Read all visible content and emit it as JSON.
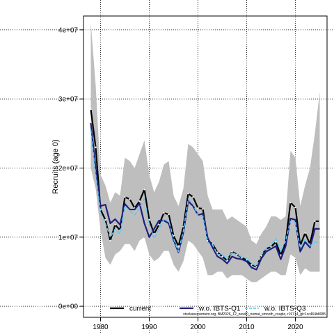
{
  "chart_data": {
    "type": "line",
    "title": "",
    "xlabel": "",
    "ylabel": "Recruits (age 0)",
    "xlim": [
      1976.5,
      2026.5
    ],
    "ylim": [
      -1600000,
      42000000
    ],
    "xticks": [
      1980,
      1990,
      2000,
      2010,
      2020
    ],
    "yticks": [
      0,
      10000000,
      20000000,
      30000000,
      40000000
    ],
    "ytick_labels": [
      "0e+00",
      "1e+07",
      "2e+07",
      "3e+07",
      "4e+07"
    ],
    "grid": true,
    "legend_position": "bottom",
    "x": [
      1978,
      1979,
      1980,
      1981,
      1982,
      1983,
      1984,
      1985,
      1986,
      1987,
      1988,
      1989,
      1990,
      1991,
      1992,
      1993,
      1994,
      1995,
      1996,
      1997,
      1998,
      1999,
      2000,
      2001,
      2002,
      2003,
      2004,
      2005,
      2006,
      2007,
      2008,
      2009,
      2010,
      2011,
      2012,
      2013,
      2014,
      2015,
      2016,
      2017,
      2018,
      2019,
      2020,
      2021,
      2022,
      2023,
      2024,
      2025
    ],
    "confidence_band": {
      "lower": [
        20000000,
        17000000,
        11000000,
        7000000,
        6000000,
        7500000,
        8000000,
        9000000,
        9000000,
        8000000,
        9500000,
        10000000,
        7500000,
        6500000,
        7000000,
        8000000,
        8000000,
        6000000,
        5000000,
        6500000,
        9500000,
        9000000,
        8000000,
        7000000,
        4500000,
        4500000,
        5000000,
        5000000,
        4000000,
        4500000,
        4500000,
        4500000,
        4000000,
        3500000,
        3500000,
        4000000,
        4500000,
        5000000,
        5000000,
        4500000,
        4500000,
        7500000,
        7000000,
        4500000,
        5500000,
        5000000,
        5000000,
        5000000
      ],
      "upper": [
        41000000,
        32000000,
        19000000,
        17500000,
        15000000,
        16500000,
        16000000,
        21500000,
        21000000,
        20000000,
        22000000,
        24000000,
        19000000,
        16500000,
        18000000,
        20500000,
        21000000,
        16000000,
        14500000,
        17000000,
        23500000,
        23000000,
        22000000,
        21000000,
        16000000,
        14000000,
        14000000,
        14000000,
        12500000,
        13000000,
        12500000,
        12000000,
        11500000,
        9500000,
        9000000,
        10500000,
        11500000,
        13000000,
        13000000,
        12500000,
        13000000,
        22500000,
        21500000,
        14500000,
        17500000,
        20000000,
        25000000,
        31000000
      ]
    },
    "series": [
      {
        "name": "current",
        "color": "#000000",
        "values": [
          28500000,
          23000000,
          14000000,
          12500000,
          9500000,
          11800000,
          11000000,
          15800000,
          15500000,
          14200000,
          15200000,
          16900000,
          12500000,
          10500000,
          11800000,
          13500000,
          13300000,
          10200000,
          8700000,
          11500000,
          16300000,
          15800000,
          14200000,
          14100000,
          9500000,
          9000000,
          7800000,
          7200000,
          6600000,
          7900000,
          7500000,
          7000000,
          6700000,
          6000000,
          5700000,
          7300000,
          8300000,
          8600000,
          9300000,
          7400000,
          9300000,
          15000000,
          14300000,
          8800000,
          10600000,
          9000000,
          12300000,
          12300000
        ]
      },
      {
        "name": "w.o. IBTS-Q1",
        "color": "#1e1e7e",
        "values": [
          26500000,
          20000000,
          14500000,
          14700000,
          12000000,
          12600000,
          11800000,
          14800000,
          14000000,
          14000000,
          14900000,
          12000000,
          10000000,
          11200000,
          12400000,
          12400000,
          12000000,
          9600000,
          7800000,
          10700000,
          15200000,
          14500000,
          13200000,
          13400000,
          9900000,
          8500000,
          7200000,
          6800000,
          6200000,
          7200000,
          6900000,
          6800000,
          6500000,
          5600000,
          5300000,
          6900000,
          7900000,
          8300000,
          8700000,
          6800000,
          8700000,
          12700000,
          12500000,
          7900000,
          9300000,
          8500000,
          11200000,
          11200000
        ]
      },
      {
        "name": "w.o. IBTS-Q3",
        "color": "#5bc8f5",
        "values": [
          25500000,
          19000000,
          13500000,
          12000000,
          10000000,
          11200000,
          10500000,
          14500000,
          13800000,
          13200000,
          14200000,
          15500000,
          11800000,
          9800000,
          11200000,
          12600000,
          12400000,
          9800000,
          7900000,
          10900000,
          15500000,
          14800000,
          13100000,
          13000000,
          9200000,
          8900000,
          7500000,
          7500000,
          6800000,
          7800000,
          7400000,
          7200000,
          6900000,
          6200000,
          5800000,
          7400000,
          8400000,
          8800000,
          9800000,
          7900000,
          9500000,
          12300000,
          12100000,
          8500000,
          9700000,
          8700000,
          9300000,
          9200000
        ]
      }
    ],
    "footnote": "stockassessment.org, BM2026_12_newID_nomat_smooth_couple, r19714_git:1cc464b8085"
  },
  "colors": {
    "band": "#bebebe",
    "grid": "#000000"
  }
}
